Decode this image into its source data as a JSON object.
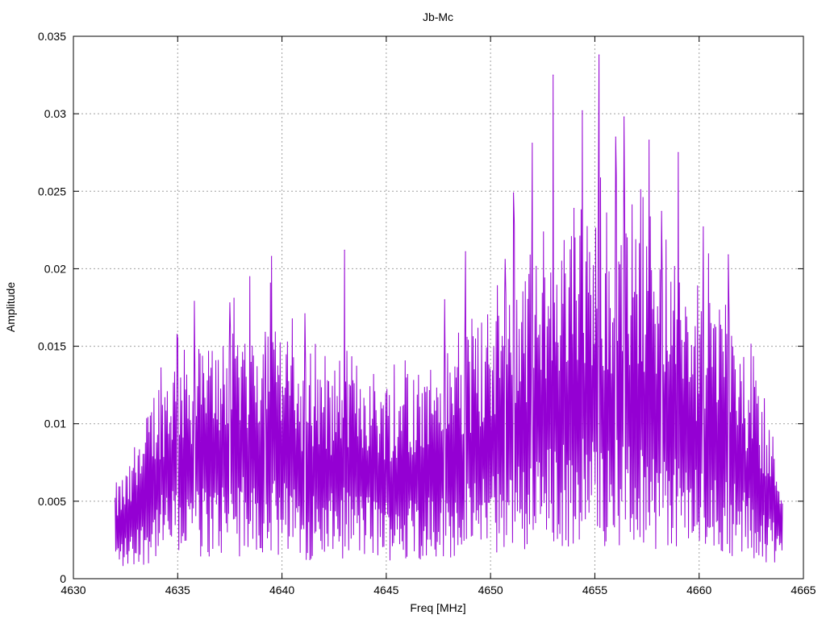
{
  "chart_data": {
    "type": "line",
    "title": "Jb-Mc",
    "xlabel": "Freq [MHz]",
    "ylabel": "Amplitude",
    "xlim": [
      4630,
      4665
    ],
    "ylim": [
      0,
      0.035
    ],
    "x_ticks": [
      "4630",
      "4635",
      "4640",
      "4645",
      "4650",
      "4655",
      "4660",
      "4665"
    ],
    "y_ticks": [
      "0",
      "0.005",
      "0.01",
      "0.015",
      "0.02",
      "0.025",
      "0.03",
      "0.035"
    ],
    "grid": true,
    "legend": "none",
    "series": [
      {
        "color": "#9400D3",
        "x_start": 4632.0,
        "x_end": 4664.0,
        "envelope": {
          "x": [
            4632.0,
            4633.0,
            4634.0,
            4635.0,
            4636.0,
            4637.0,
            4638.0,
            4639.0,
            4640.0,
            4641.0,
            4642.0,
            4643.0,
            4644.0,
            4645.0,
            4646.0,
            4647.0,
            4648.0,
            4649.0,
            4650.0,
            4651.0,
            4652.0,
            4653.0,
            4654.0,
            4655.0,
            4656.0,
            4657.0,
            4658.0,
            4659.0,
            4660.0,
            4661.0,
            4662.0,
            4663.0,
            4664.0
          ],
          "y": [
            0.0035,
            0.0045,
            0.0075,
            0.0085,
            0.0085,
            0.009,
            0.0095,
            0.0095,
            0.0092,
            0.008,
            0.0075,
            0.0085,
            0.008,
            0.0075,
            0.0078,
            0.008,
            0.0085,
            0.009,
            0.01,
            0.011,
            0.0115,
            0.0125,
            0.013,
            0.0135,
            0.013,
            0.0125,
            0.012,
            0.011,
            0.01,
            0.0105,
            0.0085,
            0.007,
            0.004
          ]
        },
        "peaks": [
          {
            "x": 4634.2,
            "y": 0.0136
          },
          {
            "x": 4635.0,
            "y": 0.0155
          },
          {
            "x": 4635.8,
            "y": 0.0179
          },
          {
            "x": 4637.5,
            "y": 0.0178
          },
          {
            "x": 4637.7,
            "y": 0.0181
          },
          {
            "x": 4639.2,
            "y": 0.0159
          },
          {
            "x": 4639.5,
            "y": 0.0208
          },
          {
            "x": 4641.1,
            "y": 0.0171
          },
          {
            "x": 4643.0,
            "y": 0.0212
          },
          {
            "x": 4647.8,
            "y": 0.018
          },
          {
            "x": 4648.8,
            "y": 0.0211
          },
          {
            "x": 4650.7,
            "y": 0.0206
          },
          {
            "x": 4651.1,
            "y": 0.0249
          },
          {
            "x": 4652.0,
            "y": 0.0281
          },
          {
            "x": 4653.0,
            "y": 0.0325
          },
          {
            "x": 4654.0,
            "y": 0.0239
          },
          {
            "x": 4654.4,
            "y": 0.0302
          },
          {
            "x": 4655.2,
            "y": 0.0338
          },
          {
            "x": 4656.0,
            "y": 0.0285
          },
          {
            "x": 4656.4,
            "y": 0.0298
          },
          {
            "x": 4657.2,
            "y": 0.0251
          },
          {
            "x": 4657.6,
            "y": 0.0283
          },
          {
            "x": 4658.2,
            "y": 0.0237
          },
          {
            "x": 4659.0,
            "y": 0.0275
          },
          {
            "x": 4660.2,
            "y": 0.0227
          },
          {
            "x": 4661.4,
            "y": 0.0209
          },
          {
            "x": 4663.6,
            "y": 0.0077
          }
        ]
      }
    ]
  }
}
